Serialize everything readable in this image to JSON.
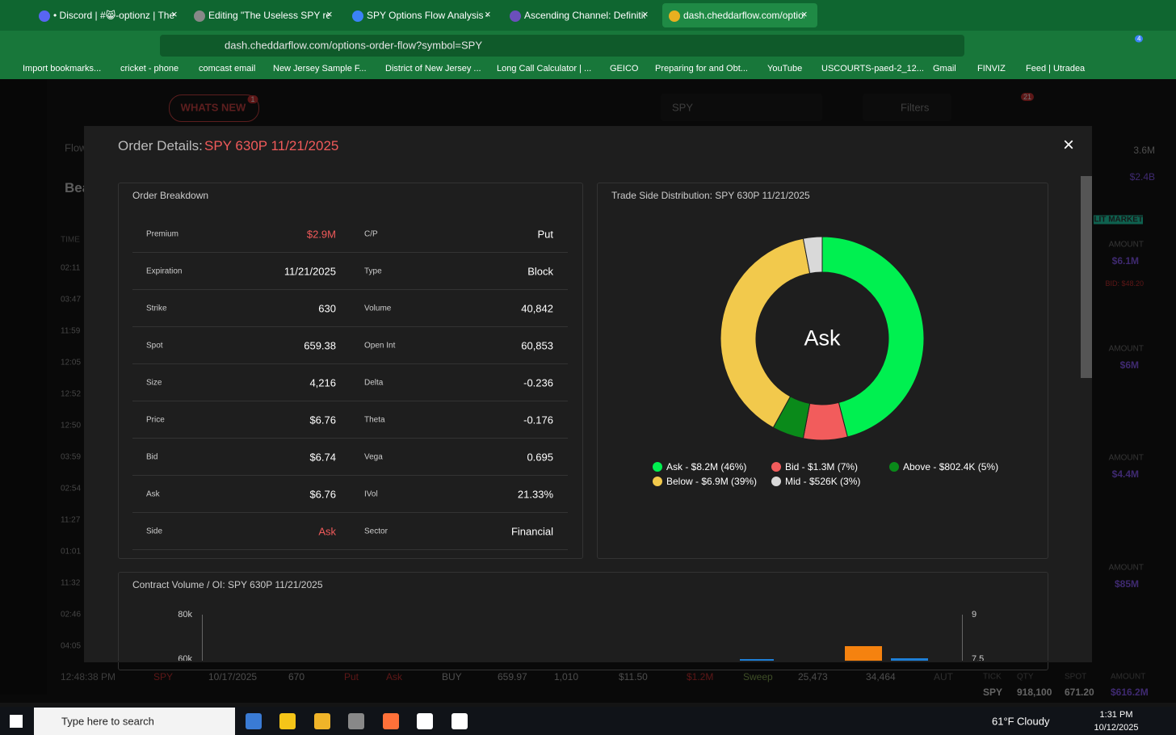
{
  "browser": {
    "tabs": [
      "• Discord | #😸-optionz | The U",
      "Editing \"The Useless SPY report",
      "SPY Options Flow Analysis - Re",
      "Ascending Channel: Definition,",
      "dash.cheddarflow.com/options-"
    ],
    "url": "dash.cheddarflow.com/options-order-flow?symbol=SPY",
    "extension_badge": "4",
    "bookmarks": [
      "Import bookmarks...",
      "cricket - phone",
      "comcast email",
      "New Jersey Sample F...",
      "District of New Jersey ...",
      "Long Call Calculator | ...",
      "GEICO",
      "Preparing for and Obt...",
      "YouTube",
      "USCOURTS-paed-2_12...",
      "Gmail",
      "FINVIZ",
      "Feed | Utradea"
    ]
  },
  "app": {
    "toolbar": {
      "whats_new": "WHATS NEW",
      "whats_new_badge": "1",
      "search": "SPY",
      "filters": "Filters",
      "notification_badge": "21"
    },
    "tab_label": "Flow",
    "heading": "Bea",
    "time_header": "TIME",
    "times": [
      "02:11",
      "03:47",
      "11:59",
      "12:05",
      "12:52",
      "12:50",
      "03:59",
      "02:54",
      "11:27",
      "01:01",
      "11:32",
      "02:46",
      "04:05"
    ],
    "right_panel": {
      "total": "3.6M",
      "premium": "$2.4B",
      "lit_market": "LIT MARKET",
      "cards": [
        {
          "label": "AMOUNT",
          "value": "$6.1M",
          "note": "BID: $48.20"
        },
        {
          "label": "AMOUNT",
          "value": "$6M"
        },
        {
          "label": "AMOUNT",
          "value": "$4.4M"
        },
        {
          "label": "AMOUNT",
          "value": "$85M"
        }
      ]
    },
    "bottom_row": [
      "12:48:38 PM",
      "SPY",
      "10/17/2025",
      "670",
      "Put",
      "Ask",
      "BUY",
      "659.97",
      "1,010",
      "$11.50",
      "$1.2M",
      "Sweep",
      "25,473",
      "34,464",
      "AUT"
    ],
    "bottom_summary": {
      "headers": [
        "TICK",
        "QTY",
        "SPOT",
        "AMOUNT"
      ],
      "values": [
        "SPY",
        "918,100",
        "671.20",
        "$616.2M"
      ]
    }
  },
  "modal": {
    "title": "Order Details:",
    "symbol": "SPY 630P 11/21/2025",
    "order_breakdown": {
      "title": "Order Breakdown",
      "rows": [
        [
          "Premium",
          "$2.9M",
          "C/P",
          "Put"
        ],
        [
          "Expiration",
          "11/21/2025",
          "Type",
          "Block"
        ],
        [
          "Strike",
          "630",
          "Volume",
          "40,842"
        ],
        [
          "Spot",
          "659.38",
          "Open Int",
          "60,853"
        ],
        [
          "Size",
          "4,216",
          "Delta",
          "-0.236"
        ],
        [
          "Price",
          "$6.76",
          "Theta",
          "-0.176"
        ],
        [
          "Bid",
          "$6.74",
          "Vega",
          "0.695"
        ],
        [
          "Ask",
          "$6.76",
          "IVol",
          "21.33%"
        ],
        [
          "Side",
          "Ask",
          "Sector",
          "Financial"
        ]
      ]
    },
    "trade_side": {
      "title": "Trade Side Distribution: SPY 630P 11/21/2025",
      "center_label": "Ask",
      "chart_data": {
        "type": "pie",
        "categories": [
          "Ask - $8.2M (46%)",
          "Bid - $1.3M (7%)",
          "Above - $802.4K (5%)",
          "Below - $6.9M (39%)",
          "Mid - $526K (3%)"
        ],
        "values": [
          46,
          7,
          5,
          39,
          3
        ],
        "colors": [
          "#00f050",
          "#f25c5c",
          "#0a8a1a",
          "#f2c94c",
          "#d9d9d9"
        ]
      }
    },
    "volume_chart": {
      "title": "Contract Volume / OI: SPY 630P 11/21/2025",
      "left_ticks": [
        "80k",
        "60k"
      ],
      "right_ticks": [
        "9",
        "7.5"
      ]
    }
  },
  "taskbar": {
    "search": "Type here to search",
    "temperature": "61°F",
    "weather": "Cloudy",
    "time": "1:31 PM",
    "date": "10/12/2025"
  }
}
